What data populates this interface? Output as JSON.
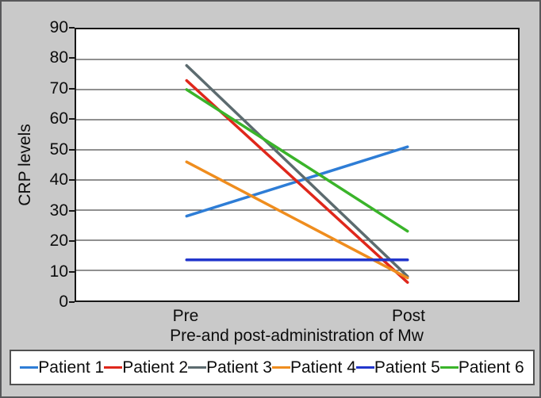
{
  "figure": {
    "background_color": "#c9c9c9",
    "plot_background_color": "#ffffff",
    "gridline_color": "#4d4d4d",
    "axis_color": "#161616"
  },
  "chart_data": {
    "type": "line",
    "categories": [
      "Pre",
      "Post"
    ],
    "series": [
      {
        "name": "Patient 1",
        "color": "#2e7dd6",
        "values": [
          28,
          51
        ]
      },
      {
        "name": "Patient 2",
        "color": "#df271b",
        "values": [
          73,
          6
        ]
      },
      {
        "name": "Patient 3",
        "color": "#5c6b6f",
        "values": [
          78,
          8
        ]
      },
      {
        "name": "Patient 4",
        "color": "#ef8d1e",
        "values": [
          46,
          7.5
        ]
      },
      {
        "name": "Patient 5",
        "color": "#2236cc",
        "values": [
          13.5,
          13.5
        ]
      },
      {
        "name": "Patient 6",
        "color": "#3ab42a",
        "values": [
          70,
          23
        ]
      }
    ],
    "title": "",
    "xlabel": "Pre-and post-administration of Mw",
    "ylabel": "CRP levels",
    "ylim": [
      0,
      90
    ],
    "y_ticks": [
      0,
      10,
      20,
      30,
      40,
      50,
      60,
      70,
      80,
      90
    ],
    "grid": true,
    "legend_position": "bottom"
  }
}
